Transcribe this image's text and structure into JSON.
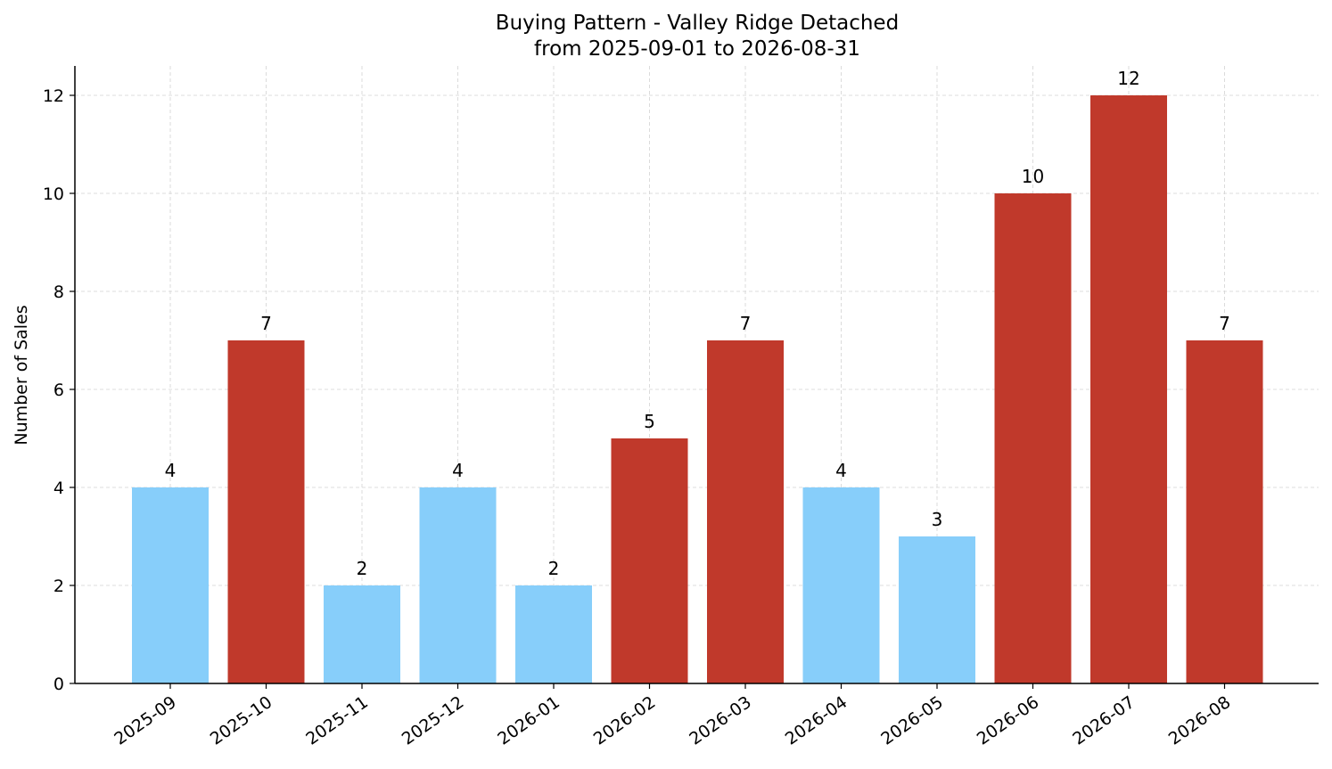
{
  "chart_data": {
    "type": "bar",
    "title": "Buying Pattern - Valley Ridge Detached",
    "subtitle": "from 2025-09-01 to 2026-08-31",
    "xlabel": "",
    "ylabel": "Number of Sales",
    "categories": [
      "2025-09",
      "2025-10",
      "2025-11",
      "2025-12",
      "2026-01",
      "2026-02",
      "2026-03",
      "2026-04",
      "2026-05",
      "2026-06",
      "2026-07",
      "2026-08"
    ],
    "values": [
      4,
      7,
      2,
      4,
      2,
      5,
      7,
      4,
      3,
      10,
      12,
      7
    ],
    "bar_colors": [
      "#87CEFA",
      "#C0392B",
      "#87CEFA",
      "#87CEFA",
      "#87CEFA",
      "#C0392B",
      "#C0392B",
      "#87CEFA",
      "#87CEFA",
      "#C0392B",
      "#C0392B",
      "#C0392B"
    ],
    "ylim": [
      0,
      12.6
    ],
    "yticks": [
      0,
      2,
      4,
      6,
      8,
      10,
      12
    ],
    "grid": true,
    "data_labels": true,
    "grid_color": "#d3d3d3",
    "axis_color": "#000000"
  }
}
